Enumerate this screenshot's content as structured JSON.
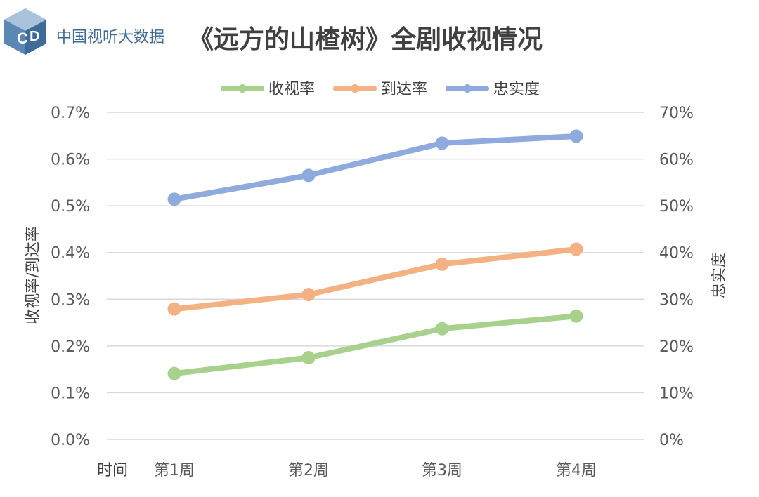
{
  "header": {
    "brand": "中国视听大数据",
    "title": "《远方的山楂树》全剧收视情况"
  },
  "chart_data": {
    "type": "line",
    "categories": [
      "第1周",
      "第2周",
      "第3周",
      "第4周"
    ],
    "x_axis_label": "时间",
    "y_left": {
      "label": "收视率/到达率",
      "range": [
        0,
        0.7
      ],
      "ticks": [
        "0.0%",
        "0.1%",
        "0.2%",
        "0.3%",
        "0.4%",
        "0.5%",
        "0.6%",
        "0.7%"
      ]
    },
    "y_right": {
      "label": "忠实度",
      "range": [
        0,
        70
      ],
      "ticks": [
        "0%",
        "10%",
        "20%",
        "30%",
        "40%",
        "50%",
        "60%",
        "70%"
      ]
    },
    "series": [
      {
        "name": "收视率",
        "axis": "left",
        "unit": "%",
        "color": "#a9d18e",
        "values": [
          0.141,
          0.175,
          0.237,
          0.264
        ]
      },
      {
        "name": "到达率",
        "axis": "left",
        "unit": "%",
        "color": "#f4b183",
        "values": [
          0.279,
          0.31,
          0.375,
          0.407
        ]
      },
      {
        "name": "忠实度",
        "axis": "right",
        "unit": "%",
        "color": "#8faadc",
        "values": [
          51.4,
          56.5,
          63.4,
          64.9
        ]
      }
    ],
    "grid": true,
    "legend_position": "top-center"
  }
}
